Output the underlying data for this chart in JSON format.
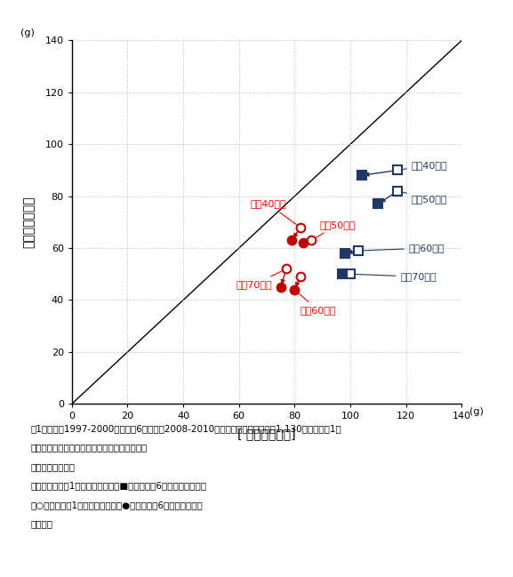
{
  "title": "",
  "xlabel": "[ 魚介類摂取量]",
  "ylabel": "【肉類摂取量】",
  "xlabel_unit": "(g)",
  "ylabel_unit": "(g)",
  "xlim": [
    0,
    140
  ],
  "ylim": [
    0,
    140
  ],
  "xticks": [
    0,
    20,
    40,
    60,
    80,
    100,
    120,
    140
  ],
  "yticks": [
    0,
    20,
    40,
    60,
    80,
    100,
    120,
    140
  ],
  "male_color": "#1F3864",
  "female_color": "#C00000",
  "annotation_male_color": "#1F3864",
  "annotation_female_color": "#FF0000",
  "male_data": {
    "40s": {
      "survey1": [
        117,
        90
      ],
      "survey6": [
        104,
        88
      ]
    },
    "50s": {
      "survey1": [
        117,
        82
      ],
      "survey6": [
        110,
        77
      ]
    },
    "60s": {
      "survey1": [
        103,
        59
      ],
      "survey6": [
        98,
        58
      ]
    },
    "70s": {
      "survey1": [
        100,
        50
      ],
      "survey6": [
        97,
        50
      ]
    }
  },
  "female_data": {
    "40s": {
      "survey1": [
        82,
        68
      ],
      "survey6": [
        79,
        63
      ]
    },
    "50s": {
      "survey1": [
        86,
        63
      ],
      "survey6": [
        83,
        62
      ]
    },
    "60s": {
      "survey1": [
        82,
        49
      ],
      "survey6": [
        80,
        44
      ]
    },
    "70s": {
      "survey1": [
        77,
        52
      ],
      "survey6": [
        75,
        45
      ]
    }
  },
  "male_labels": {
    "40s": "男性40歳代",
    "50s": "男性50歳代",
    "60s": "男性60歳代",
    "70s": "男性70歳代"
  },
  "female_labels": {
    "40s": "女性40歳代",
    "50s": "女性50歳代",
    "60s": "女性60歳代",
    "70s": "女性70歳代"
  },
  "caption_lines": [
    "第1次調査（1997-2000年）と第6次調査（2008-2010年）の両調査に参加した1,130人における1日",
    "あたりの魚介類と肉類摂取量の推移を示した。",
    "図中のプロットは",
    "　口は男性の第1次調査の平均値、■は男性の第6次調査の平均値、",
    "　○は女性の第1次調査の平均値、●は女性の第6次調査の平均値",
    "を示す。"
  ]
}
